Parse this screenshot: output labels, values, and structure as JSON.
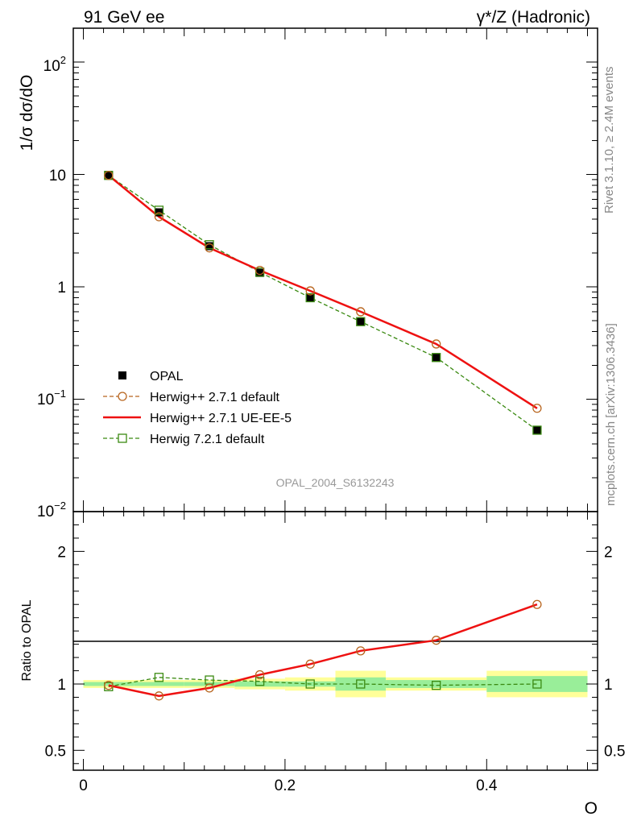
{
  "header": {
    "left_label": "91 GeV ee",
    "right_label": "γ*/Z (Hadronic)"
  },
  "side": {
    "rivet_label": "Rivet 3.1.10, ≥ 2.4M events",
    "source_label": "mcplots.cern.ch [arXiv:1306.3436]"
  },
  "watermark": "OPAL_2004_S6132243",
  "chart_data": [
    {
      "type": "line",
      "panel": "main",
      "ylabel": "1/σ dσ/dO",
      "yscale": "log",
      "ylim": [
        0.01,
        200
      ],
      "xlim": [
        -0.01,
        0.51
      ],
      "ytick_labels": {
        "t2": "10^2",
        "t10": "10",
        "t1": "1",
        "tm1": "10^-1",
        "tm2": "10^-2"
      },
      "legend": {
        "position": "bottom-left",
        "entries": [
          "OPAL",
          "Herwig++ 2.7.1 default",
          "Herwig++ 2.7.1 UE-EE-5",
          "Herwig 7.2.1 default"
        ]
      },
      "x": [
        0.025,
        0.075,
        0.125,
        0.175,
        0.225,
        0.275,
        0.35,
        0.45
      ],
      "series": [
        {
          "name": "OPAL",
          "color": "#000000",
          "marker": "filled-square",
          "values": [
            9.9,
            4.6,
            2.3,
            1.33,
            0.8,
            0.49,
            0.235,
            0.053
          ]
        },
        {
          "name": "Herwig++ 2.7.1 default",
          "color": "#b8651e",
          "marker": "open-circle",
          "line": "dashed",
          "values": [
            9.8,
            4.2,
            2.22,
            1.4,
            0.92,
            0.6,
            0.31,
            0.083
          ]
        },
        {
          "name": "Herwig++ 2.7.1 UE-EE-5",
          "color": "#ee1111",
          "marker": "none",
          "line": "solid",
          "values": [
            9.8,
            4.2,
            2.22,
            1.4,
            0.92,
            0.6,
            0.31,
            0.083
          ]
        },
        {
          "name": "Herwig 7.2.1 default",
          "color": "#3b8a12",
          "marker": "open-square",
          "line": "dashed",
          "values": [
            9.8,
            4.8,
            2.37,
            1.35,
            0.8,
            0.49,
            0.235,
            0.053
          ]
        }
      ]
    },
    {
      "type": "line",
      "panel": "ratio",
      "ylabel": "Ratio to OPAL",
      "xlabel": "O",
      "ylim": [
        0.35,
        2.3
      ],
      "yticks": [
        0.5,
        1,
        2
      ],
      "ytick_labels": [
        "0.5",
        "1",
        "2"
      ],
      "xticks": [
        0,
        0.2,
        0.4
      ],
      "xtick_labels": [
        "0",
        "0.2",
        "0.4"
      ],
      "x": [
        0.025,
        0.075,
        0.125,
        0.175,
        0.225,
        0.275,
        0.35,
        0.45
      ],
      "bands": {
        "bins": [
          [
            0,
            0.05
          ],
          [
            0.05,
            0.1
          ],
          [
            0.1,
            0.15
          ],
          [
            0.15,
            0.2
          ],
          [
            0.2,
            0.25
          ],
          [
            0.25,
            0.3
          ],
          [
            0.3,
            0.4
          ],
          [
            0.4,
            0.5
          ]
        ],
        "stat_half_width": [
          0.015,
          0.015,
          0.015,
          0.02,
          0.02,
          0.05,
          0.03,
          0.06
        ],
        "total_half_width": [
          0.03,
          0.03,
          0.03,
          0.04,
          0.05,
          0.1,
          0.05,
          0.1
        ],
        "stat_color": "#99ee99",
        "total_color": "#ffff99"
      },
      "series": [
        {
          "name": "Herwig++ 2.7.1 UE-EE-5",
          "color": "#ee1111",
          "values": [
            0.99,
            0.91,
            0.97,
            1.07,
            1.15,
            1.25,
            1.33,
            1.6
          ]
        },
        {
          "name": "Herwig 7.2.1 default",
          "color": "#3b8a12",
          "values": [
            0.98,
            1.05,
            1.03,
            1.02,
            1.0,
            1.0,
            0.99,
            1.0
          ]
        }
      ]
    }
  ]
}
